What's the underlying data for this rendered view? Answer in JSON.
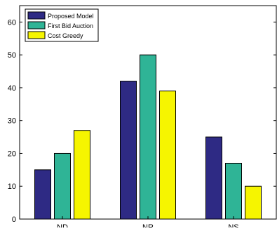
{
  "chart_data": {
    "type": "bar",
    "categories": [
      "ND",
      "NR",
      "NS"
    ],
    "series": [
      {
        "name": "Proposed Model",
        "color": "#2e2a84",
        "values": [
          15,
          42,
          25
        ]
      },
      {
        "name": "First Bid Auction",
        "color": "#2fb496",
        "values": [
          20,
          50,
          17
        ]
      },
      {
        "name": "Cost Greedy",
        "color": "#f6f500",
        "values": [
          27,
          39,
          10
        ]
      }
    ],
    "ylim": [
      0,
      65
    ],
    "yticks": [
      0,
      10,
      20,
      30,
      40,
      50,
      60
    ],
    "title": "",
    "xlabel": "",
    "ylabel": "",
    "legend_position": "top-left",
    "grid": false
  }
}
